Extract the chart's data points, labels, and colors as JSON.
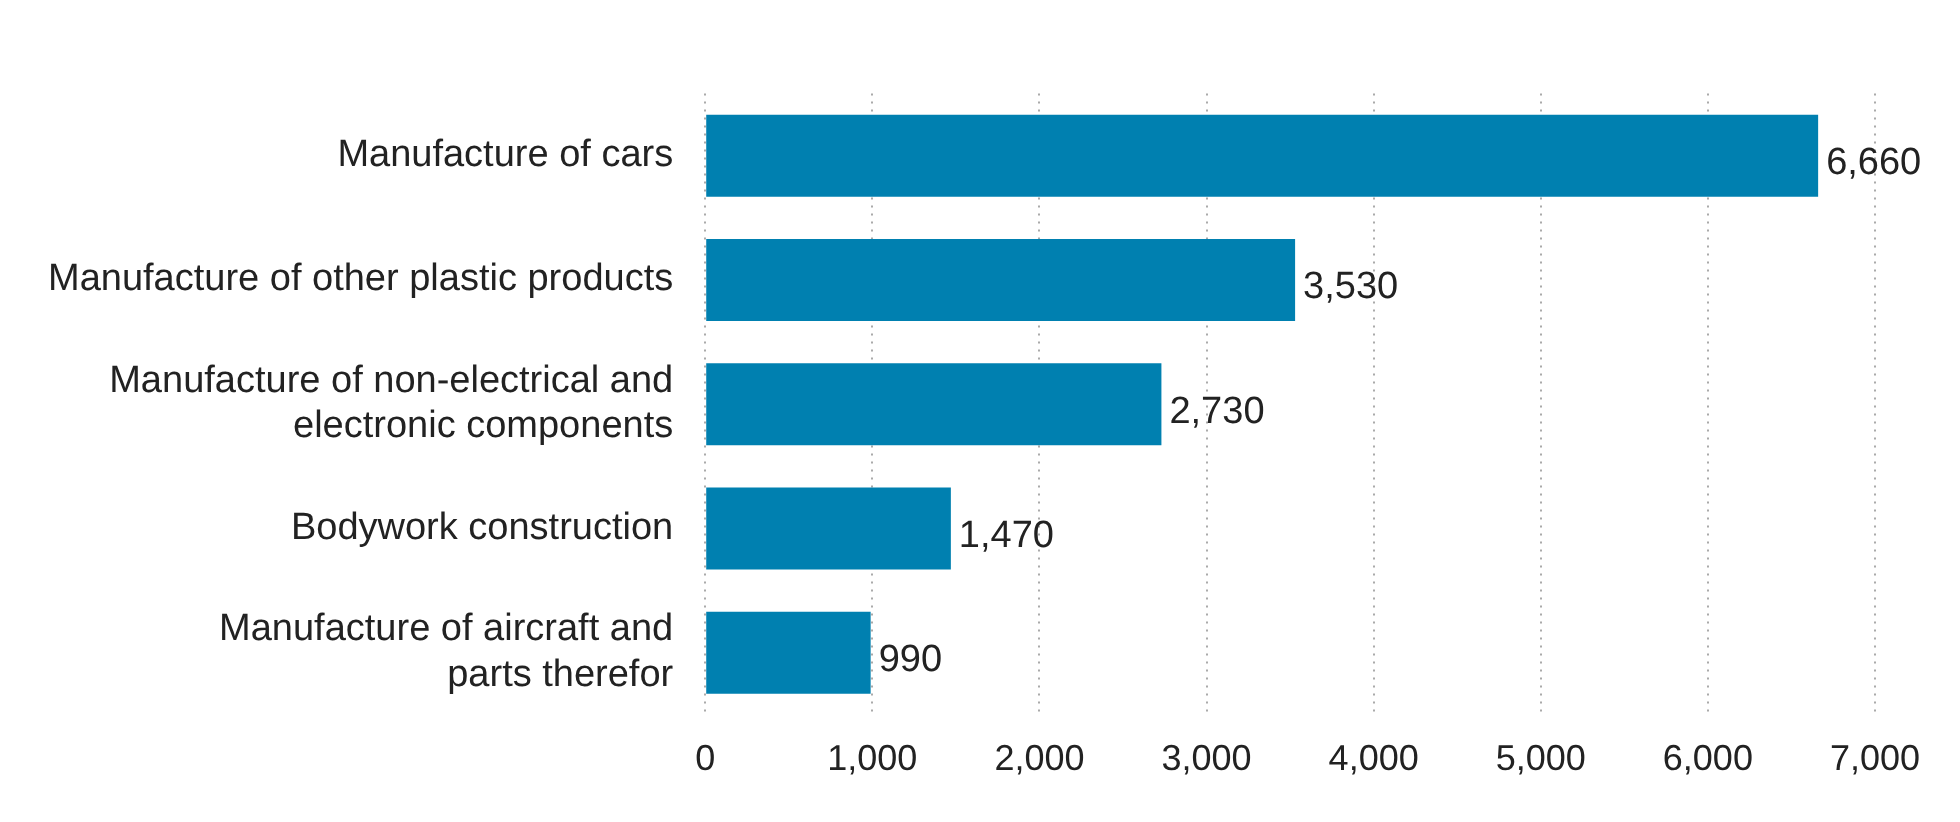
{
  "chart_data": {
    "type": "bar",
    "orientation": "horizontal",
    "categories": [
      "Manufacture of cars",
      "Manufacture of other plastic products",
      "Manufacture of non-electrical and\nelectronic components",
      "Bodywork construction",
      "Manufacture of aircraft and\nparts therefor"
    ],
    "values": [
      6660,
      3530,
      2730,
      1470,
      990
    ],
    "value_labels": [
      "6,660",
      "3,530",
      "2,730",
      "1,470",
      "990"
    ],
    "color": "#0080b0",
    "xlim": [
      0,
      7000
    ],
    "xticks": [
      0,
      {
        "value": 1000,
        "label": "1,000"
      },
      {
        "value": 2000,
        "label": "2,000"
      },
      {
        "value": 3000,
        "label": "3,000"
      },
      {
        "value": 4000,
        "label": "4,000"
      },
      {
        "value": 5000,
        "label": "5,000"
      },
      {
        "value": 6000,
        "label": "6,000"
      },
      {
        "value": 7000,
        "label": "7,000"
      }
    ],
    "grid": "x",
    "legend": false
  }
}
